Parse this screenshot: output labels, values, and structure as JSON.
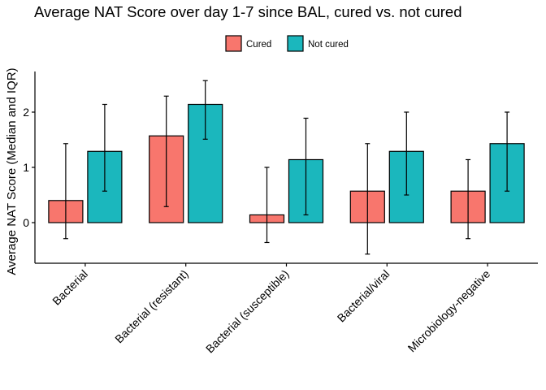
{
  "chart_data": {
    "type": "bar",
    "title": "Average NAT Score over day 1-7 since BAL, cured vs. not cured",
    "ylabel": "Average NAT Score (Median and IQR)",
    "xlabel": "",
    "categories": [
      "Bacterial",
      "Bacterial (resistant)",
      "Bacterial (susceptible)",
      "Bacterial/viral",
      "Microbiology-negative"
    ],
    "ylim": [
      -0.75,
      2.7
    ],
    "yticks": [
      0,
      1,
      2
    ],
    "grid": false,
    "legend_position": "top",
    "series": [
      {
        "name": "Cured",
        "color": "#F8766D",
        "values": [
          0.4,
          1.57,
          0.14,
          0.57,
          0.57
        ],
        "q1": [
          -0.29,
          0.29,
          -0.36,
          -0.57,
          -0.29
        ],
        "q3": [
          1.43,
          2.29,
          1.0,
          1.43,
          1.14
        ]
      },
      {
        "name": "Not cured",
        "color": "#1BB7BD",
        "values": [
          1.29,
          2.14,
          1.14,
          1.29,
          1.43
        ],
        "q1": [
          0.57,
          1.51,
          0.14,
          0.5,
          0.57
        ],
        "q3": [
          2.14,
          2.57,
          1.89,
          2.0,
          2.0
        ]
      }
    ]
  }
}
